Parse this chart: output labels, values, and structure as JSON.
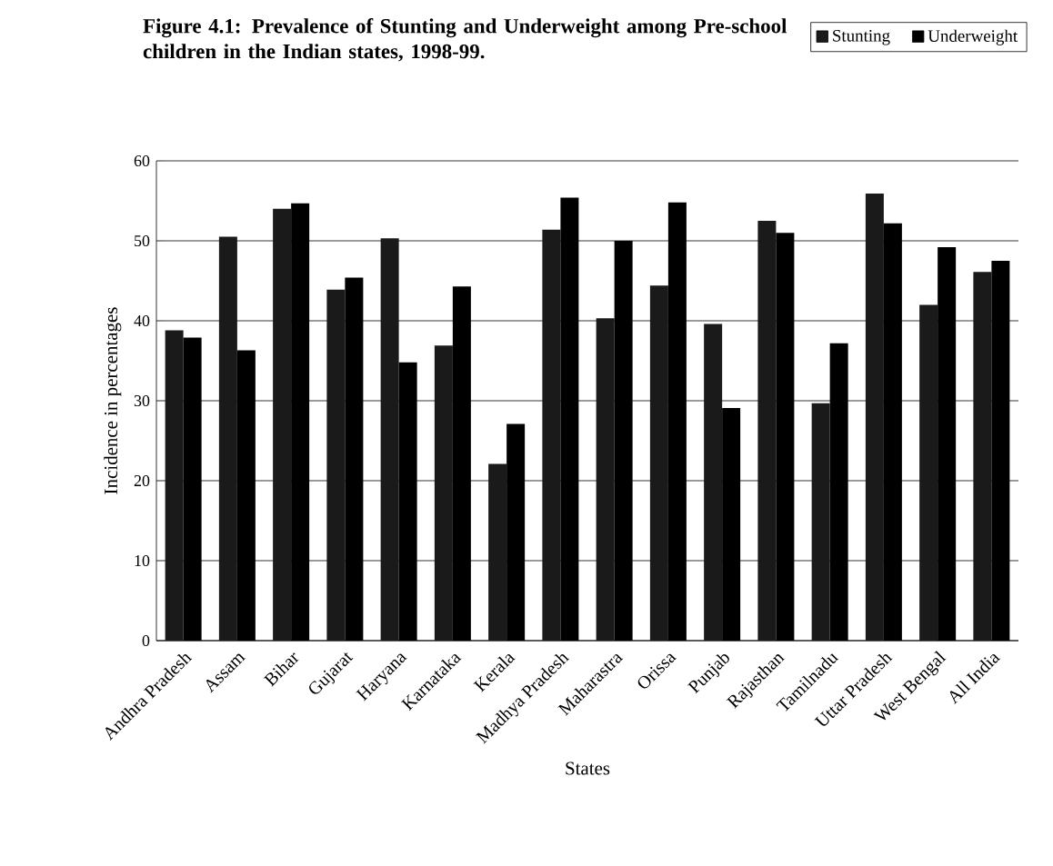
{
  "chart_data": {
    "type": "bar",
    "title": "Figure 4.1: Prevalence of Stunting and Underweight among Pre-school children in the Indian states, 1998-99.",
    "xlabel": "States",
    "ylabel": "Incidence in percentages",
    "categories": [
      "Andhra Pradesh",
      "Assam",
      "Bihar",
      "Gujarat",
      "Haryana",
      "Karnataka",
      "Kerala",
      "Madhya Pradesh",
      "Maharastra",
      "Orissa",
      "Punjab",
      "Rajasthan",
      "Tamilnadu",
      "Uttar Pradesh",
      "West Bengal",
      "All India"
    ],
    "series": [
      {
        "name": "Stunting",
        "color": "#1a1a1a",
        "values": [
          38.8,
          50.5,
          54.0,
          43.9,
          50.3,
          36.9,
          22.1,
          51.4,
          40.3,
          44.4,
          39.6,
          52.5,
          29.7,
          55.9,
          42.0,
          46.1
        ]
      },
      {
        "name": "Underweight",
        "color": "#000000",
        "values": [
          37.9,
          36.3,
          54.7,
          45.4,
          34.8,
          44.3,
          27.1,
          55.4,
          50.0,
          54.8,
          29.1,
          51.0,
          37.2,
          52.2,
          49.2,
          47.5
        ]
      }
    ],
    "ylim": [
      0,
      60
    ],
    "yticks": [
      0,
      10,
      20,
      30,
      40,
      50,
      60
    ],
    "grid": "y",
    "legend": "top right"
  }
}
